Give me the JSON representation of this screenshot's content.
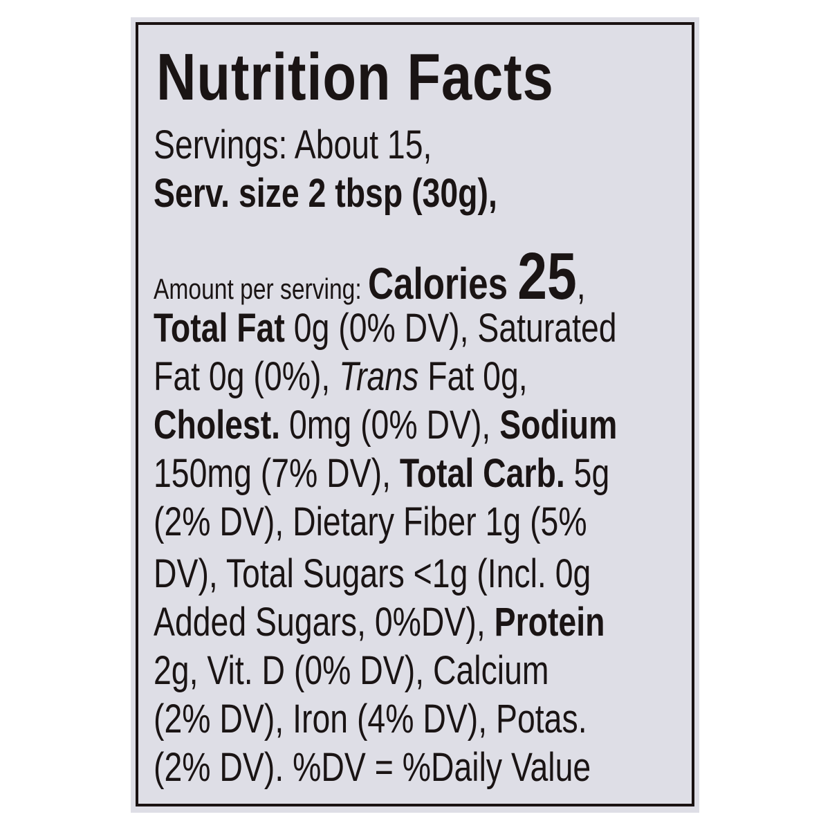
{
  "label": {
    "title": "Nutrition Facts",
    "lines": [
      [
        {
          "t": "Servings: About 15,",
          "s": ""
        }
      ],
      [
        {
          "t": "Serv. size 2 tbsp (30g),",
          "s": "b"
        }
      ],
      [
        {
          "t": "Amount per serving: ",
          "s": "small"
        },
        {
          "t": "Calories ",
          "s": "cal"
        },
        {
          "t": "25",
          "s": "big"
        },
        {
          "t": ",",
          "s": ""
        }
      ],
      [
        {
          "t": "Total Fat",
          "s": "b"
        },
        {
          "t": " 0g (0% DV), Saturated",
          "s": ""
        }
      ],
      [
        {
          "t": "Fat 0g (0%), ",
          "s": ""
        },
        {
          "t": "Trans",
          "s": "i"
        },
        {
          "t": " Fat 0g,",
          "s": ""
        }
      ],
      [
        {
          "t": "Cholest.",
          "s": "b"
        },
        {
          "t": " 0mg (0% DV), ",
          "s": ""
        },
        {
          "t": "Sodium",
          "s": "b"
        }
      ],
      [
        {
          "t": "150mg (7% DV), ",
          "s": ""
        },
        {
          "t": "Total Carb.",
          "s": "b"
        },
        {
          "t": " 5g",
          "s": ""
        }
      ],
      [
        {
          "t": "(2% DV), Dietary Fiber 1g (5%",
          "s": ""
        }
      ],
      [
        {
          "t": "DV), Total Sugars <1g (Incl. 0g",
          "s": ""
        }
      ],
      [
        {
          "t": "Added Sugars, 0%DV), ",
          "s": ""
        },
        {
          "t": "Protein",
          "s": "b"
        }
      ],
      [
        {
          "t": "2g, Vit. D (0% DV), Calcium",
          "s": ""
        }
      ],
      [
        {
          "t": "(2% DV), Iron (4% DV), Potas.",
          "s": ""
        }
      ],
      [
        {
          "t": "(2% DV). %DV = %Daily Value",
          "s": ""
        }
      ]
    ]
  },
  "colors": {
    "panel": "#dedee6",
    "border": "#1a1212",
    "text": "#1a1414"
  }
}
